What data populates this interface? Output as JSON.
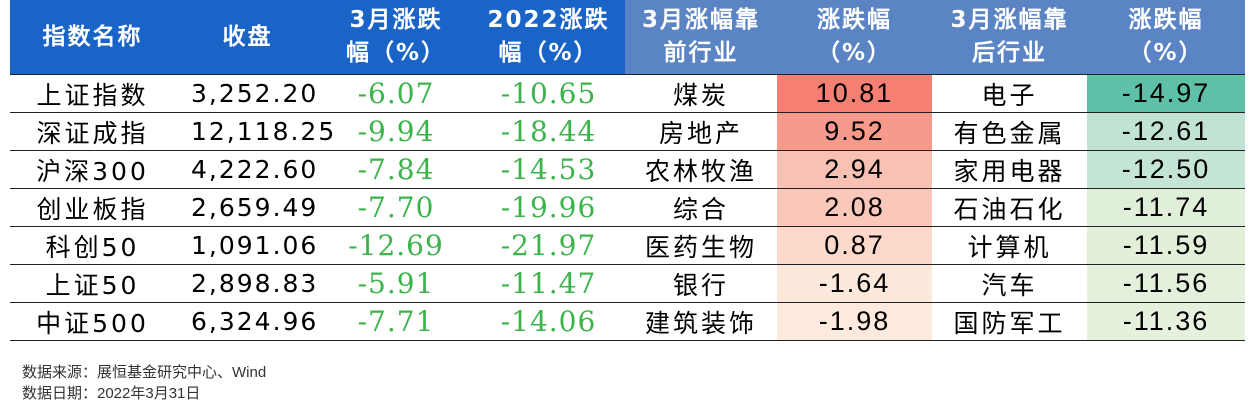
{
  "table": {
    "headers": [
      {
        "line1": "指数名称",
        "line2": ""
      },
      {
        "line1": "收盘",
        "line2": ""
      },
      {
        "line1": "3月涨跌",
        "line2": "幅（%）"
      },
      {
        "line1": "2022涨跌",
        "line2": "幅（%）"
      },
      {
        "line1": "3月涨幅靠",
        "line2": "前行业"
      },
      {
        "line1": "涨跌幅",
        "line2": "（%）"
      },
      {
        "line1": "3月涨幅靠",
        "line2": "后行业"
      },
      {
        "line1": "涨跌幅",
        "line2": "（%）"
      }
    ],
    "rows": [
      {
        "name": "上证指数",
        "close": "3,252.20",
        "mar_change": "-6.07",
        "ytd_change": "-10.65",
        "top_industry": "煤炭",
        "top_change": "10.81",
        "bottom_industry": "电子",
        "bottom_change": "-14.97"
      },
      {
        "name": "深证成指",
        "close": "12,118.25",
        "mar_change": "-9.94",
        "ytd_change": "-18.44",
        "top_industry": "房地产",
        "top_change": "9.52",
        "bottom_industry": "有色金属",
        "bottom_change": "-12.61"
      },
      {
        "name": "沪深300",
        "close": "4,222.60",
        "mar_change": "-7.84",
        "ytd_change": "-14.53",
        "top_industry": "农林牧渔",
        "top_change": "2.94",
        "bottom_industry": "家用电器",
        "bottom_change": "-12.50"
      },
      {
        "name": "创业板指",
        "close": "2,659.49",
        "mar_change": "-7.70",
        "ytd_change": "-19.96",
        "top_industry": "综合",
        "top_change": "2.08",
        "bottom_industry": "石油石化",
        "bottom_change": "-11.74"
      },
      {
        "name": "科创50",
        "close": "1,091.06",
        "mar_change": "-12.69",
        "ytd_change": "-21.97",
        "top_industry": "医药生物",
        "top_change": "0.87",
        "bottom_industry": "计算机",
        "bottom_change": "-11.59"
      },
      {
        "name": "上证50",
        "close": "2,898.83",
        "mar_change": "-5.91",
        "ytd_change": "-11.47",
        "top_industry": "银行",
        "top_change": "-1.64",
        "bottom_industry": "汽车",
        "bottom_change": "-11.56"
      },
      {
        "name": "中证500",
        "close": "6,324.96",
        "mar_change": "-7.71",
        "ytd_change": "-14.06",
        "top_industry": "建筑装饰",
        "top_change": "-1.98",
        "bottom_industry": "国防军工",
        "bottom_change": "-11.36"
      }
    ]
  },
  "colors": {
    "header_dark": "#1a64c8",
    "header_light": "#5b84c4",
    "index_change_text": "#3cb44b",
    "top_change_fills": [
      "#f47f72",
      "#f79a8b",
      "#f9c1b3",
      "#f9c8ba",
      "#fcd9cb",
      "#fde8dc",
      "#fde9de"
    ],
    "bottom_change_fills": [
      "#5fc0a8",
      "#c0e3d4",
      "#c4e5d6",
      "#e0efd9",
      "#e2f0da",
      "#e3f0db",
      "#e6f1dd"
    ]
  },
  "notes": {
    "source": "数据来源：展恒基金研究中心、Wind",
    "date": "数据日期：2022年3月31日"
  }
}
